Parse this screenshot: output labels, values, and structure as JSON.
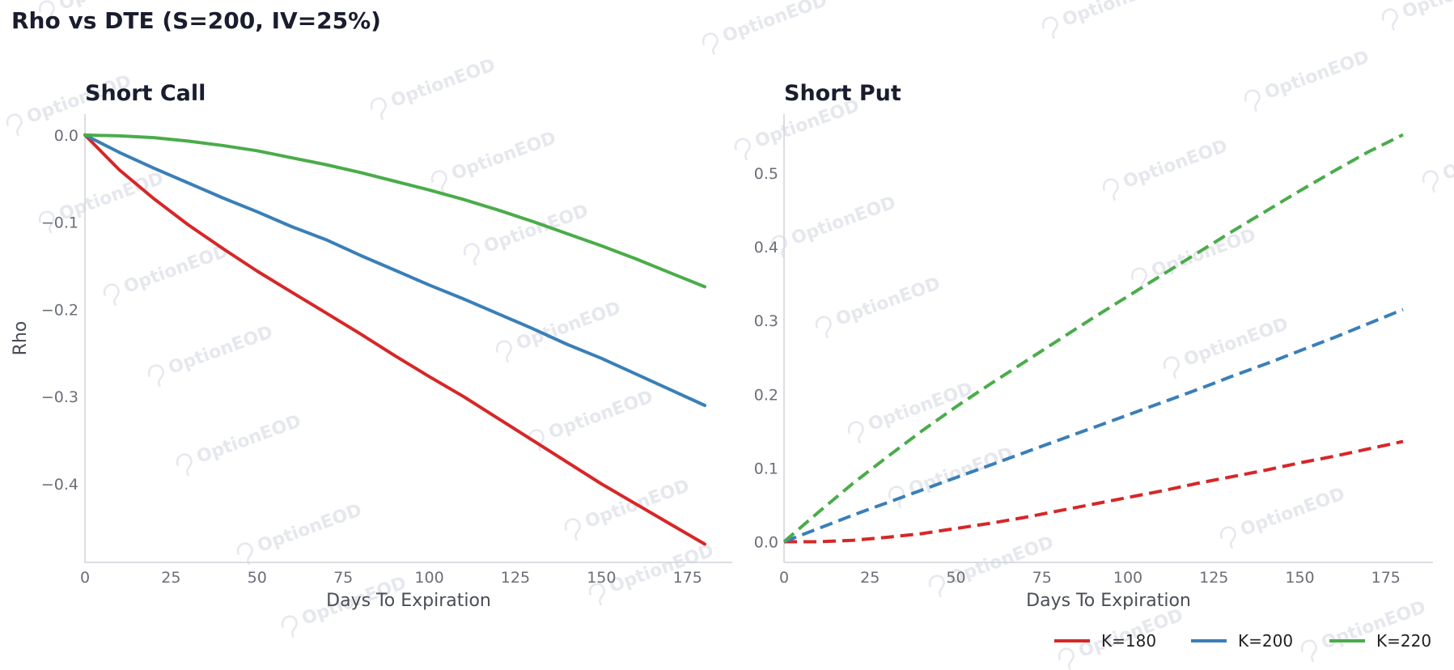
{
  "page": {
    "title": "Rho vs DTE (S=200, IV=25%)",
    "watermark": "OptionEOD"
  },
  "colors": {
    "K180": "#d62728",
    "K200": "#3a7fb8",
    "K220": "#4aac4a"
  },
  "chart_data": [
    {
      "type": "line",
      "title": "Short Call",
      "xlabel": "Days To Expiration",
      "ylabel": "Rho",
      "xlim": [
        0,
        188
      ],
      "ylim": [
        -0.49,
        0.024
      ],
      "xticks": [
        0,
        25,
        50,
        75,
        100,
        125,
        150,
        175
      ],
      "yticks": [
        0.0,
        -0.1,
        -0.2,
        -0.3,
        -0.4
      ],
      "ytick_labels": [
        "0.0",
        "−0.1",
        "−0.2",
        "−0.3",
        "−0.4"
      ],
      "grid": false,
      "line_style": "solid",
      "x": [
        0,
        10,
        20,
        30,
        40,
        50,
        60,
        70,
        80,
        90,
        100,
        110,
        120,
        130,
        140,
        150,
        160,
        170,
        180
      ],
      "series": [
        {
          "name": "K=180",
          "color": "#d62728",
          "values": [
            0,
            -0.04,
            -0.073,
            -0.103,
            -0.13,
            -0.156,
            -0.18,
            -0.204,
            -0.228,
            -0.253,
            -0.277,
            -0.3,
            -0.325,
            -0.35,
            -0.375,
            -0.4,
            -0.423,
            -0.446,
            -0.469
          ]
        },
        {
          "name": "K=200",
          "color": "#3a7fb8",
          "values": [
            0,
            -0.02,
            -0.038,
            -0.055,
            -0.072,
            -0.088,
            -0.105,
            -0.12,
            -0.138,
            -0.155,
            -0.172,
            -0.188,
            -0.205,
            -0.222,
            -0.24,
            -0.256,
            -0.274,
            -0.292,
            -0.31
          ]
        },
        {
          "name": "K=220",
          "color": "#4aac4a",
          "values": [
            0,
            -0.001,
            -0.003,
            -0.007,
            -0.012,
            -0.018,
            -0.026,
            -0.034,
            -0.043,
            -0.053,
            -0.063,
            -0.074,
            -0.086,
            -0.099,
            -0.113,
            -0.127,
            -0.142,
            -0.158,
            -0.174
          ]
        }
      ]
    },
    {
      "type": "line",
      "title": "Short Put",
      "xlabel": "Days To Expiration",
      "ylabel": "",
      "xlim": [
        0,
        188
      ],
      "ylim": [
        -0.028,
        0.58
      ],
      "xticks": [
        0,
        25,
        50,
        75,
        100,
        125,
        150,
        175
      ],
      "yticks": [
        0.0,
        0.1,
        0.2,
        0.3,
        0.4,
        0.5
      ],
      "ytick_labels": [
        "0.0",
        "0.1",
        "0.2",
        "0.3",
        "0.4",
        "0.5"
      ],
      "grid": false,
      "line_style": "dashed",
      "x": [
        0,
        10,
        20,
        30,
        40,
        50,
        60,
        70,
        80,
        90,
        100,
        110,
        120,
        130,
        140,
        150,
        160,
        170,
        180
      ],
      "series": [
        {
          "name": "K=180",
          "color": "#d62728",
          "values": [
            0,
            0.0,
            0.002,
            0.006,
            0.011,
            0.018,
            0.025,
            0.033,
            0.042,
            0.051,
            0.06,
            0.069,
            0.079,
            0.088,
            0.097,
            0.107,
            0.116,
            0.126,
            0.136
          ]
        },
        {
          "name": "K=200",
          "color": "#3a7fb8",
          "values": [
            0,
            0.018,
            0.036,
            0.053,
            0.07,
            0.087,
            0.104,
            0.121,
            0.138,
            0.155,
            0.172,
            0.189,
            0.206,
            0.224,
            0.241,
            0.259,
            0.277,
            0.296,
            0.315
          ]
        },
        {
          "name": "K=220",
          "color": "#4aac4a",
          "values": [
            0,
            0.04,
            0.079,
            0.115,
            0.15,
            0.183,
            0.214,
            0.244,
            0.274,
            0.304,
            0.333,
            0.362,
            0.391,
            0.42,
            0.448,
            0.476,
            0.503,
            0.529,
            0.552
          ]
        }
      ]
    }
  ],
  "legend": {
    "position": "bottom-right",
    "items": [
      {
        "label": "K=180",
        "color": "#d62728"
      },
      {
        "label": "K=200",
        "color": "#3a7fb8"
      },
      {
        "label": "K=220",
        "color": "#4aac4a"
      }
    ]
  }
}
